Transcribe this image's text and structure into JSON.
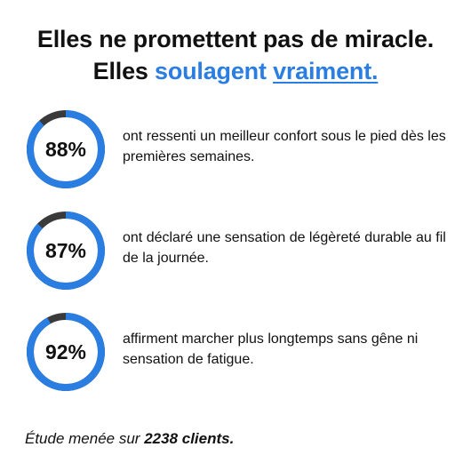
{
  "colors": {
    "accent": "#2a7de1",
    "ring_track": "#3a3a3a",
    "text": "#111111"
  },
  "headline": {
    "line1": "Elles ne promettent pas de miracle.",
    "line2_prefix": "Elles",
    "line2_accent": "soulagent",
    "line2_underlined": "vraiment."
  },
  "stats": [
    {
      "percent_label": "88%",
      "value": 0.88,
      "text": "ont ressenti un meilleur confort sous le pied dès les premières semaines."
    },
    {
      "percent_label": "87%",
      "value": 0.87,
      "text": "ont déclaré une sensation de légèreté durable au fil de la journée."
    },
    {
      "percent_label": "92%",
      "value": 0.92,
      "text": "affirment marcher plus longtemps sans gêne ni sensation de fatigue."
    }
  ],
  "footer": {
    "prefix": "Étude menée sur",
    "highlight": "2238 clients."
  }
}
